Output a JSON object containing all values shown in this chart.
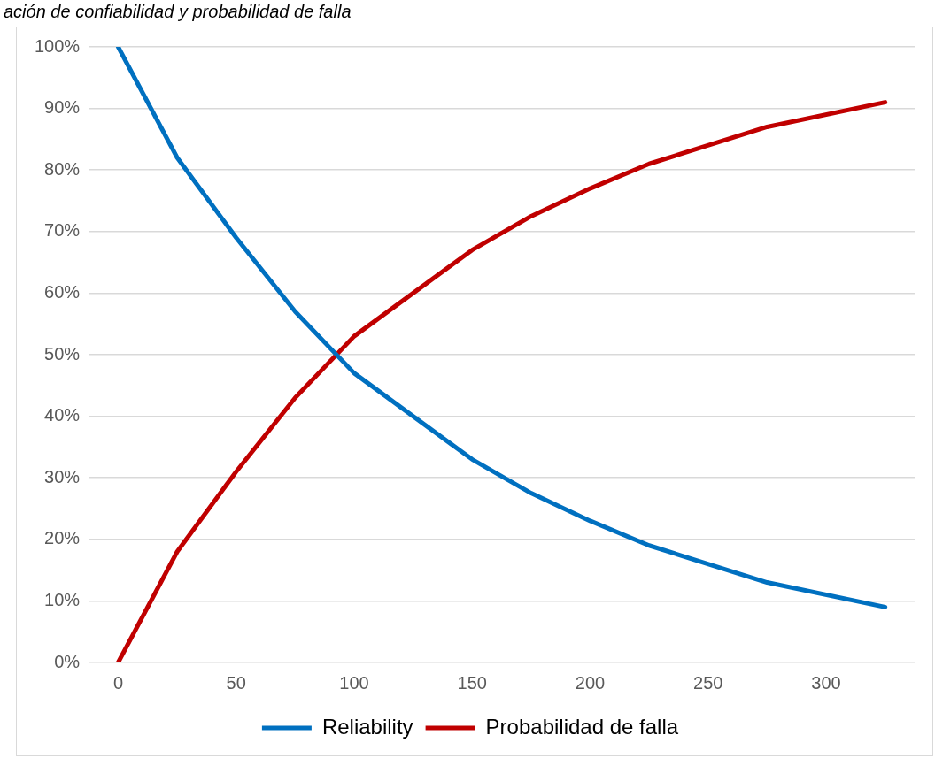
{
  "chart_data": {
    "type": "line",
    "title": "ación de confiabilidad y probabilidad de falla",
    "x": [
      0,
      25,
      50,
      75,
      100,
      150,
      175,
      200,
      225,
      275,
      325
    ],
    "series": [
      {
        "name": "Reliability",
        "color": "#0070c0",
        "values": [
          100,
          82,
          69,
          57,
          47,
          33,
          27.5,
          23,
          19,
          13,
          9
        ]
      },
      {
        "name": "Probabilidad de falla",
        "color": "#c00000",
        "values": [
          0,
          18,
          31,
          43,
          53,
          67,
          72.5,
          77,
          81,
          87,
          91
        ]
      }
    ],
    "xlim": [
      -12.5,
      337.5
    ],
    "xticks": [
      0,
      50,
      100,
      150,
      200,
      250,
      300
    ],
    "ylim": [
      0,
      100
    ],
    "yticks": [
      {
        "value": 0,
        "label": "0%"
      },
      {
        "value": 10,
        "label": "10%"
      },
      {
        "value": 20,
        "label": "20%"
      },
      {
        "value": 30,
        "label": "30%"
      },
      {
        "value": 40,
        "label": "40%"
      },
      {
        "value": 50,
        "label": "50%"
      },
      {
        "value": 60,
        "label": "60%"
      },
      {
        "value": 70,
        "label": "70%"
      },
      {
        "value": 80,
        "label": "80%"
      },
      {
        "value": 90,
        "label": "90%"
      },
      {
        "value": 100,
        "label": "100%"
      }
    ],
    "grid": "y",
    "legend": "bottom",
    "marker": "none",
    "line_style": "solid"
  }
}
